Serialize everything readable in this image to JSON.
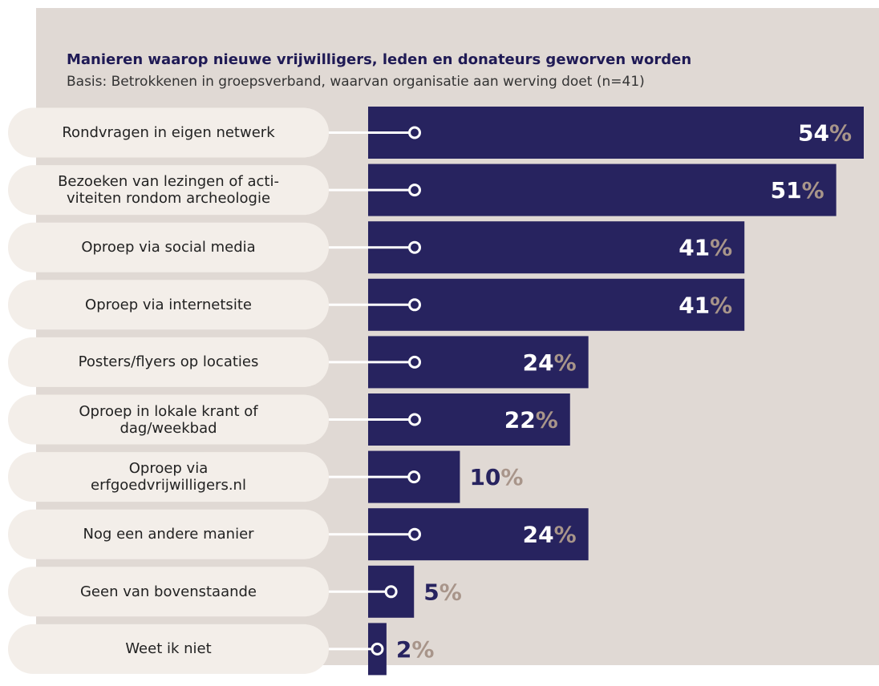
{
  "chart_data": {
    "type": "bar",
    "orientation": "horizontal",
    "title": "Manieren waarop nieuwe vrijwilligers, leden en donateurs geworven worden",
    "subtitle": "Basis: Betrokkenen in groepsverband, waarvan organisatie aan werving doet (n=41)",
    "categories": [
      "Rondvragen in eigen netwerk",
      "Bezoeken van lezingen of acti-\nviteiten rondom archeologie",
      "Oproep via social media",
      "Oproep via internetsite",
      "Posters/flyers op locaties",
      "Oproep in lokale krant of\ndag/weekbad",
      "Oproep via\nerfgoedvrijwilligers.nl",
      "Nog een andere manier",
      "Geen van bovenstaande",
      "Weet ik niet"
    ],
    "values": [
      54,
      51,
      41,
      41,
      24,
      22,
      10,
      24,
      5,
      2
    ],
    "value_labels": [
      "54%",
      "51%",
      "41%",
      "41%",
      "24%",
      "22%",
      "10%",
      "24%",
      "5%",
      "2%"
    ],
    "color": "#27235f",
    "xlim": [
      0,
      54
    ]
  }
}
